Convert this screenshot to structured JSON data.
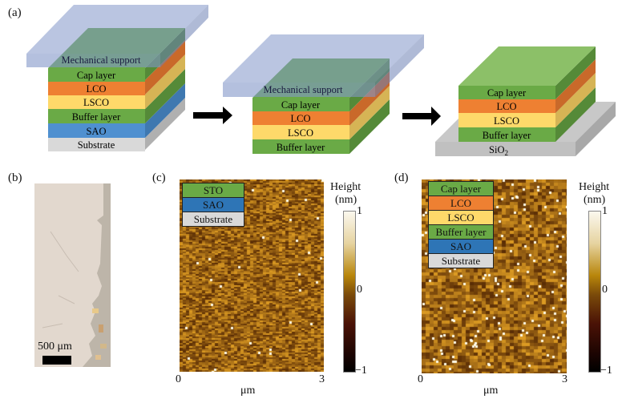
{
  "panels": {
    "a": {
      "label": "(a)",
      "stack1": {
        "support": "Mechanical support",
        "layers": [
          {
            "name": "Cap layer",
            "color": "#6aaa46"
          },
          {
            "name": "LCO",
            "color": "#ee8032"
          },
          {
            "name": "LSCO",
            "color": "#fed96a"
          },
          {
            "name": "Buffer layer",
            "color": "#6aaa46"
          },
          {
            "name": "SAO",
            "color": "#4f90d0"
          },
          {
            "name": "Substrate",
            "color": "#d9d9d9"
          }
        ]
      },
      "stack2": {
        "support": "Mechanical support",
        "layers": [
          {
            "name": "Cap layer",
            "color": "#6aaa46"
          },
          {
            "name": "LCO",
            "color": "#ee8032"
          },
          {
            "name": "LSCO",
            "color": "#fed96a"
          },
          {
            "name": "Buffer layer",
            "color": "#6aaa46"
          }
        ]
      },
      "stack3": {
        "layers": [
          {
            "name": "Cap layer",
            "color": "#6aaa46"
          },
          {
            "name": "LCO",
            "color": "#ee8032"
          },
          {
            "name": "LSCO",
            "color": "#fed96a"
          },
          {
            "name": "Buffer layer",
            "color": "#6aaa46"
          }
        ],
        "base": "SiO",
        "base_sub": "2"
      }
    },
    "b": {
      "label": "(b)",
      "scalebar": "500 μm"
    },
    "c": {
      "label": "(c)",
      "legend": [
        {
          "name": "STO",
          "color": "#6aaa46"
        },
        {
          "name": "SAO",
          "color": "#2e75b6"
        },
        {
          "name": "Substrate",
          "color": "#d9d9d9"
        }
      ],
      "x_min": "0",
      "x_max": "3",
      "x_unit": "μm",
      "colorbar_title": "Height",
      "colorbar_unit": "(nm)",
      "colorbar_max": "1",
      "colorbar_mid": "0",
      "colorbar_min": "−1"
    },
    "d": {
      "label": "(d)",
      "legend": [
        {
          "name": "Cap layer",
          "color": "#6aaa46"
        },
        {
          "name": "LCO",
          "color": "#ee8032"
        },
        {
          "name": "LSCO",
          "color": "#fed96a"
        },
        {
          "name": "Buffer layer",
          "color": "#6aaa46"
        },
        {
          "name": "SAO",
          "color": "#2e75b6"
        },
        {
          "name": "Substrate",
          "color": "#d9d9d9"
        }
      ],
      "x_min": "0",
      "x_max": "3",
      "x_unit": "μm",
      "colorbar_title": "Height",
      "colorbar_unit": "(nm)",
      "colorbar_max": "1",
      "colorbar_mid": "0",
      "colorbar_min": "−1"
    }
  }
}
